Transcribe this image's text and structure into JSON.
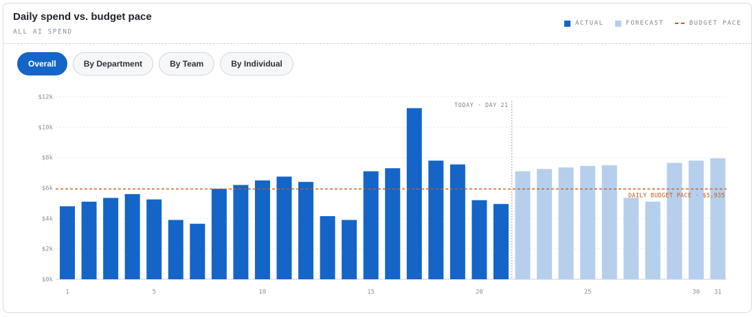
{
  "header": {
    "title": "Daily spend vs. budget pace",
    "subtitle": "ALL AI SPEND"
  },
  "legend": [
    {
      "label": "ACTUAL",
      "color": "#1565c8",
      "kind": "swatch"
    },
    {
      "label": "FORECAST",
      "color": "#b6cfec",
      "kind": "swatch"
    },
    {
      "label": "BUDGET PACE",
      "color": "#c95a1a",
      "kind": "dashed-line"
    }
  ],
  "tabs": [
    {
      "label": "Overall",
      "active": true
    },
    {
      "label": "By Department",
      "active": false
    },
    {
      "label": "By Team",
      "active": false
    },
    {
      "label": "By Individual",
      "active": false
    }
  ],
  "chart_data": {
    "type": "bar",
    "title": "Daily spend vs. budget pace",
    "ylim": [
      0,
      12000
    ],
    "y_ticks": [
      0,
      2000,
      4000,
      6000,
      8000,
      10000,
      12000
    ],
    "y_tick_labels": [
      "$0k",
      "$2k",
      "$4k",
      "$6k",
      "$8k",
      "$10k",
      "$12k"
    ],
    "x_tick_labels": [
      {
        "day": 1,
        "label": "1"
      },
      {
        "day": 5,
        "label": "5"
      },
      {
        "day": 10,
        "label": "10"
      },
      {
        "day": 15,
        "label": "15"
      },
      {
        "day": 20,
        "label": "20"
      },
      {
        "day": 25,
        "label": "25"
      },
      {
        "day": 30,
        "label": "30"
      },
      {
        "day": 31,
        "label": "31"
      }
    ],
    "grid": true,
    "colors": {
      "actual": "#1565c8",
      "forecast": "#b6cfec",
      "budget": "#c95a1a",
      "today": "#9aa3ab"
    },
    "series": [
      {
        "name": "ACTUAL",
        "days": [
          1,
          2,
          3,
          4,
          5,
          6,
          7,
          8,
          9,
          10,
          11,
          12,
          13,
          14,
          15,
          16,
          17,
          18,
          19,
          20,
          21
        ],
        "values": [
          4800,
          5100,
          5350,
          5600,
          5250,
          3900,
          3650,
          5950,
          6200,
          6500,
          6750,
          6400,
          4150,
          3900,
          7100,
          7300,
          11250,
          7800,
          7550,
          5200,
          4950
        ]
      },
      {
        "name": "FORECAST",
        "days": [
          22,
          23,
          24,
          25,
          26,
          27,
          28,
          29,
          30,
          31
        ],
        "values": [
          7100,
          7250,
          7350,
          7450,
          7500,
          5350,
          5100,
          7650,
          7800,
          7950
        ]
      }
    ],
    "budget_pace": {
      "value": 5935,
      "label": "DAILY BUDGET PACE · $5,935"
    },
    "today": {
      "day": 21,
      "label": "TODAY · DAY 21"
    }
  }
}
